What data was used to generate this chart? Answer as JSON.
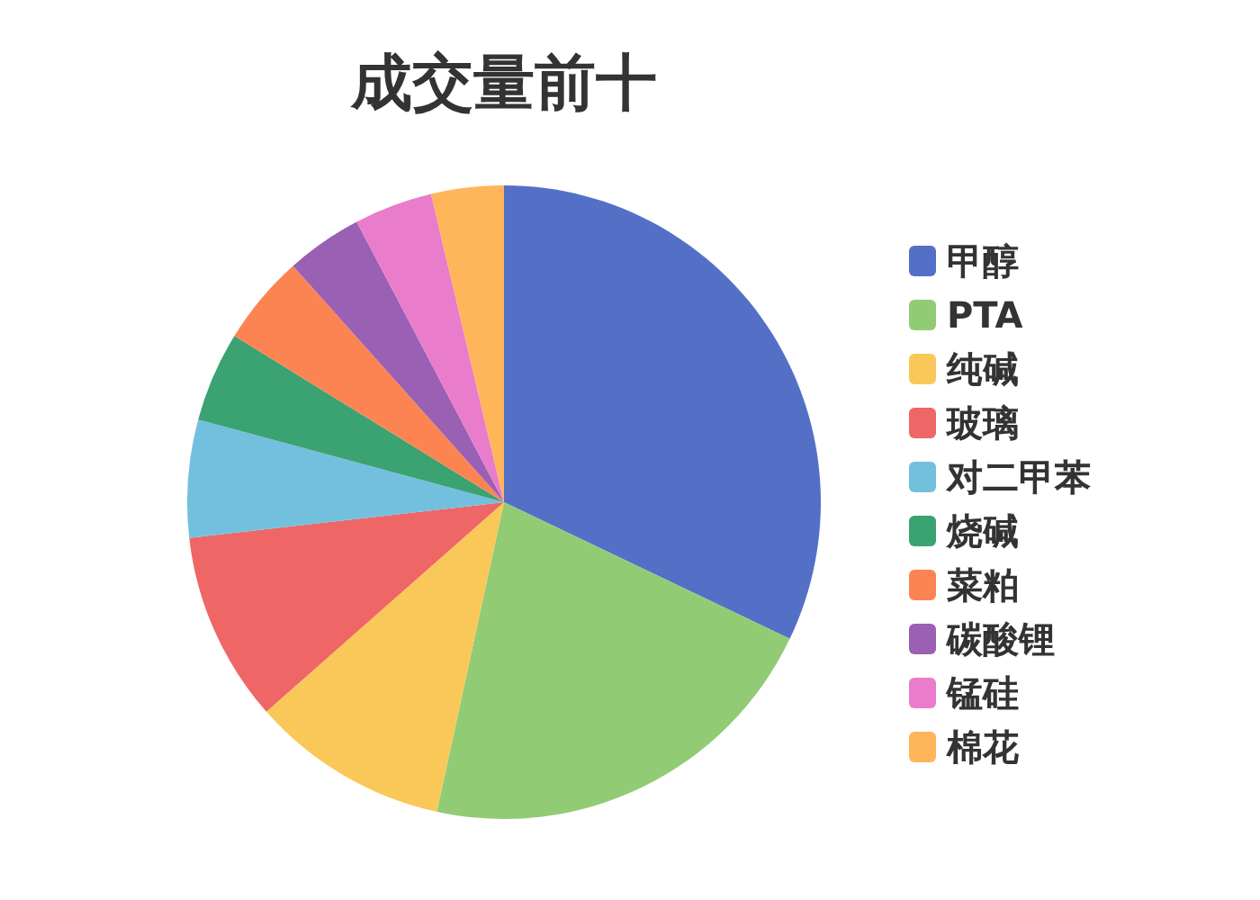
{
  "chart_data": {
    "type": "pie",
    "title": "成交量前十",
    "categories": [
      "甲醇",
      "PTA",
      "纯碱",
      "玻璃",
      "对二甲苯",
      "烧碱",
      "菜粕",
      "碳酸锂",
      "锰硅",
      "棉花"
    ],
    "values": [
      32.1,
      21.3,
      10.1,
      9.7,
      6.0,
      4.6,
      4.6,
      3.9,
      4.0,
      3.7
    ],
    "colors": [
      "#5470c6",
      "#91cc75",
      "#fac858",
      "#ee6666",
      "#73c0de",
      "#3ba272",
      "#fc8452",
      "#9a60b4",
      "#ea7ccc",
      "#ffb55a"
    ],
    "legend": "right"
  }
}
